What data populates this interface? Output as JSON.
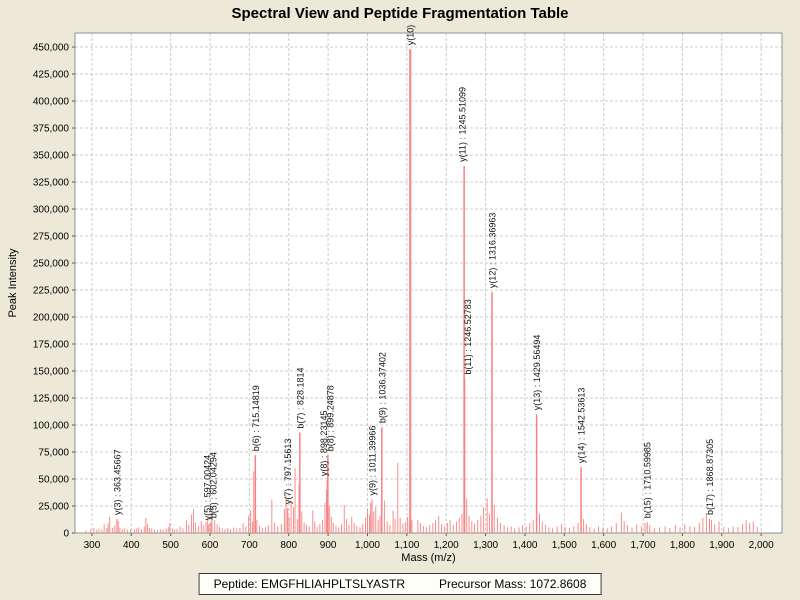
{
  "window": {
    "title": "Spectral View and Peptide Fragmentation Table"
  },
  "colors": {
    "page_bg": "#ece9d8",
    "plot_bg": "#ffffff",
    "grid": "#cccccc",
    "border": "#8f8f8f",
    "tick": "#555555",
    "text": "#000000",
    "peak": "#f98080"
  },
  "footer": {
    "peptide": "Peptide: EMGFHLIAHPLTSLYASTR",
    "precursor_mass": "Precursor Mass: 1072.8608"
  },
  "chart_data": {
    "type": "bar",
    "variant": "mass-spectrum-stick-plot",
    "title": "Spectral View and Peptide Fragmentation Table",
    "xlabel": "Mass (m/z)",
    "ylabel": "Peak Intensity",
    "grid": true,
    "legend": false,
    "xlim": [
      257,
      2053
    ],
    "ylim": [
      0,
      463000
    ],
    "x_ticks": [
      300,
      400,
      500,
      600,
      700,
      800,
      900,
      1000,
      1100,
      1200,
      1300,
      1400,
      1500,
      1600,
      1700,
      1800,
      1900,
      2000
    ],
    "y_ticks": [
      0,
      25000,
      50000,
      75000,
      100000,
      125000,
      150000,
      175000,
      200000,
      225000,
      250000,
      275000,
      300000,
      325000,
      350000,
      375000,
      400000,
      425000,
      450000
    ],
    "labeled_peaks": [
      {
        "label": "y(3) : 363.45667",
        "mz": 363.457,
        "intensity": 13000
      },
      {
        "label": "y(5) : 597.00424",
        "mz": 597.004,
        "intensity": 8000,
        "dx": -2
      },
      {
        "label": "b(5) : 602.04294",
        "mz": 602.043,
        "intensity": 10000,
        "dx": 2
      },
      {
        "label": "b(6) : 715.14819",
        "mz": 715.148,
        "intensity": 72000
      },
      {
        "label": "y(7) : 797.15613",
        "mz": 797.156,
        "intensity": 23000
      },
      {
        "label": "b(7) : 828.1814",
        "mz": 828.181,
        "intensity": 93000
      },
      {
        "label": "y(8) : 898.23145",
        "mz": 898.231,
        "intensity": 49000,
        "dx": -4
      },
      {
        "label": "b(8) : 899.24878",
        "mz": 899.249,
        "intensity": 72000,
        "dx": 2
      },
      {
        "label": "y(9) : 1011.39966",
        "mz": 1011.4,
        "intensity": 31000
      },
      {
        "label": "b(9) : 1036.37402",
        "mz": 1036.374,
        "intensity": 98000
      },
      {
        "label": "y(10)",
        "mz": 1108.6,
        "intensity": 448000
      },
      {
        "label": "y(11) : 1245.51099",
        "mz": 1245.511,
        "intensity": 340000,
        "dx": -2
      },
      {
        "label": "b(11) : 1246.52783",
        "mz": 1246.528,
        "intensity": 143000,
        "dx": 3
      },
      {
        "label": "y(12) : 1316.36963",
        "mz": 1316.37,
        "intensity": 223000
      },
      {
        "label": "y(13) : 1429.56494",
        "mz": 1429.565,
        "intensity": 110000
      },
      {
        "label": "y(14) : 1542.53613",
        "mz": 1542.536,
        "intensity": 61000
      },
      {
        "label": "b(15) : 1710.59985",
        "mz": 1710.6,
        "intensity": 10000
      },
      {
        "label": "b(17) : 1868.87305",
        "mz": 1868.873,
        "intensity": 13000
      }
    ],
    "background_peaks": [
      [
        285,
        2500
      ],
      [
        297,
        3500
      ],
      [
        305,
        5000
      ],
      [
        312,
        3000
      ],
      [
        318,
        4000
      ],
      [
        325,
        3000
      ],
      [
        331,
        8000
      ],
      [
        338,
        4500
      ],
      [
        341,
        9000
      ],
      [
        345,
        15000
      ],
      [
        352,
        5000
      ],
      [
        358,
        7000
      ],
      [
        367,
        11000
      ],
      [
        371,
        5000
      ],
      [
        377,
        3500
      ],
      [
        383,
        4200
      ],
      [
        390,
        3000
      ],
      [
        398,
        3600
      ],
      [
        408,
        3200
      ],
      [
        414,
        4500
      ],
      [
        419,
        5200
      ],
      [
        426,
        3500
      ],
      [
        433,
        6000
      ],
      [
        437,
        14000
      ],
      [
        441,
        8000
      ],
      [
        446,
        4500
      ],
      [
        452,
        4000
      ],
      [
        459,
        3200
      ],
      [
        466,
        2800
      ],
      [
        474,
        3500
      ],
      [
        481,
        3000
      ],
      [
        489,
        4200
      ],
      [
        494,
        5500
      ],
      [
        498,
        9000
      ],
      [
        505,
        4200
      ],
      [
        510,
        3500
      ],
      [
        516,
        3800
      ],
      [
        524,
        6200
      ],
      [
        531,
        4500
      ],
      [
        540,
        12000
      ],
      [
        546,
        7500
      ],
      [
        553,
        17000
      ],
      [
        558,
        22000
      ],
      [
        563,
        9500
      ],
      [
        571,
        6500
      ],
      [
        578,
        11000
      ],
      [
        584,
        7200
      ],
      [
        590,
        10000
      ],
      [
        594,
        14000
      ],
      [
        605,
        23000
      ],
      [
        612,
        12000
      ],
      [
        618,
        8000
      ],
      [
        624,
        5500
      ],
      [
        631,
        4200
      ],
      [
        638,
        3600
      ],
      [
        645,
        4800
      ],
      [
        652,
        3400
      ],
      [
        660,
        5200
      ],
      [
        668,
        4200
      ],
      [
        676,
        4800
      ],
      [
        684,
        9000
      ],
      [
        691,
        6200
      ],
      [
        698,
        16000
      ],
      [
        703,
        21000
      ],
      [
        708,
        10500
      ],
      [
        711,
        57000
      ],
      [
        719,
        12000
      ],
      [
        726,
        6500
      ],
      [
        733,
        4800
      ],
      [
        741,
        5500
      ],
      [
        748,
        7200
      ],
      [
        757,
        31000
      ],
      [
        764,
        9500
      ],
      [
        772,
        6200
      ],
      [
        781,
        8500
      ],
      [
        789,
        22000
      ],
      [
        793,
        35000
      ],
      [
        801,
        15000
      ],
      [
        806,
        28000
      ],
      [
        812,
        24000
      ],
      [
        816,
        60000
      ],
      [
        822,
        13000
      ],
      [
        826,
        45000
      ],
      [
        833,
        20000
      ],
      [
        839,
        9500
      ],
      [
        845,
        7500
      ],
      [
        852,
        6200
      ],
      [
        861,
        21000
      ],
      [
        866,
        10500
      ],
      [
        872,
        5500
      ],
      [
        879,
        8200
      ],
      [
        886,
        12000
      ],
      [
        892,
        28000
      ],
      [
        896,
        40000
      ],
      [
        903,
        25000
      ],
      [
        908,
        15000
      ],
      [
        913,
        9500
      ],
      [
        920,
        6500
      ],
      [
        927,
        5200
      ],
      [
        934,
        8000
      ],
      [
        941,
        26000
      ],
      [
        947,
        13000
      ],
      [
        953,
        7500
      ],
      [
        960,
        15000
      ],
      [
        966,
        9200
      ],
      [
        973,
        6500
      ],
      [
        981,
        5200
      ],
      [
        988,
        8500
      ],
      [
        995,
        14000
      ],
      [
        1000,
        22000
      ],
      [
        1005,
        17000
      ],
      [
        1008,
        28000
      ],
      [
        1016,
        20000
      ],
      [
        1021,
        24000
      ],
      [
        1027,
        12000
      ],
      [
        1032,
        16000
      ],
      [
        1043,
        30000
      ],
      [
        1050,
        10500
      ],
      [
        1057,
        7500
      ],
      [
        1065,
        21000
      ],
      [
        1070,
        13000
      ],
      [
        1077,
        65000
      ],
      [
        1083,
        14000
      ],
      [
        1090,
        8500
      ],
      [
        1096,
        10500
      ],
      [
        1102,
        15000
      ],
      [
        1107,
        9500
      ],
      [
        1113,
        12000
      ],
      [
        1128,
        12000
      ],
      [
        1135,
        9200
      ],
      [
        1142,
        6500
      ],
      [
        1150,
        5200
      ],
      [
        1158,
        7200
      ],
      [
        1166,
        9200
      ],
      [
        1173,
        12000
      ],
      [
        1181,
        16000
      ],
      [
        1188,
        8200
      ],
      [
        1196,
        6200
      ],
      [
        1203,
        9200
      ],
      [
        1210,
        12000
      ],
      [
        1218,
        7500
      ],
      [
        1226,
        10500
      ],
      [
        1233,
        14000
      ],
      [
        1240,
        18000
      ],
      [
        1252,
        32000
      ],
      [
        1258,
        16000
      ],
      [
        1265,
        11000
      ],
      [
        1272,
        8500
      ],
      [
        1280,
        12000
      ],
      [
        1288,
        16000
      ],
      [
        1295,
        24000
      ],
      [
        1304,
        32000
      ],
      [
        1310,
        18000
      ],
      [
        1322,
        26000
      ],
      [
        1330,
        14000
      ],
      [
        1338,
        9200
      ],
      [
        1347,
        7200
      ],
      [
        1356,
        5500
      ],
      [
        1365,
        6200
      ],
      [
        1374,
        4500
      ],
      [
        1385,
        5200
      ],
      [
        1394,
        7200
      ],
      [
        1403,
        6200
      ],
      [
        1412,
        9200
      ],
      [
        1421,
        12000
      ],
      [
        1437,
        18000
      ],
      [
        1444,
        10500
      ],
      [
        1452,
        7500
      ],
      [
        1461,
        5200
      ],
      [
        1470,
        4200
      ],
      [
        1482,
        6200
      ],
      [
        1493,
        8200
      ],
      [
        1502,
        5500
      ],
      [
        1513,
        4500
      ],
      [
        1524,
        6200
      ],
      [
        1535,
        9200
      ],
      [
        1549,
        13000
      ],
      [
        1556,
        8200
      ],
      [
        1565,
        5500
      ],
      [
        1576,
        4200
      ],
      [
        1587,
        6200
      ],
      [
        1598,
        5200
      ],
      [
        1609,
        4500
      ],
      [
        1620,
        6200
      ],
      [
        1632,
        9200
      ],
      [
        1645,
        19000
      ],
      [
        1652,
        11000
      ],
      [
        1660,
        7200
      ],
      [
        1672,
        5200
      ],
      [
        1684,
        8200
      ],
      [
        1696,
        6200
      ],
      [
        1705,
        9200
      ],
      [
        1717,
        7200
      ],
      [
        1729,
        4500
      ],
      [
        1742,
        5200
      ],
      [
        1756,
        6200
      ],
      [
        1768,
        4500
      ],
      [
        1782,
        7200
      ],
      [
        1794,
        5200
      ],
      [
        1806,
        8200
      ],
      [
        1819,
        6200
      ],
      [
        1831,
        5500
      ],
      [
        1843,
        9200
      ],
      [
        1852,
        14000
      ],
      [
        1861,
        18000
      ],
      [
        1874,
        12000
      ],
      [
        1882,
        8200
      ],
      [
        1893,
        10500
      ],
      [
        1905,
        5500
      ],
      [
        1917,
        4500
      ],
      [
        1929,
        6200
      ],
      [
        1941,
        5500
      ],
      [
        1953,
        8200
      ],
      [
        1962,
        12000
      ],
      [
        1971,
        9200
      ],
      [
        1980,
        10500
      ],
      [
        1990,
        5500
      ]
    ]
  }
}
